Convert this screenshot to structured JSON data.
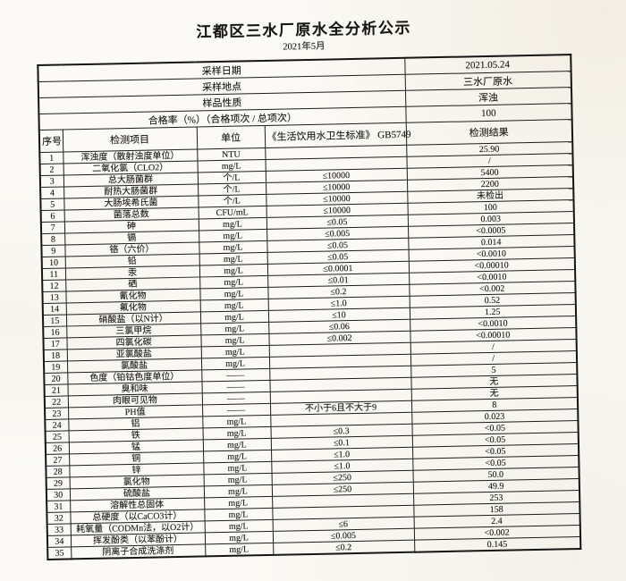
{
  "document": {
    "title": "江都区三水厂原水全分析公示",
    "subtitle": "2021年5月"
  },
  "info": [
    {
      "label": "采样日期",
      "value": "2021.05.24"
    },
    {
      "label": "采样地点",
      "value": "三水厂原水"
    },
    {
      "label": "样品性质",
      "value": "浑浊"
    },
    {
      "label": "合格率（%）（合格项次 / 总项次）",
      "value": "100"
    }
  ],
  "table": {
    "columns": [
      "序号",
      "检测项目",
      "单位",
      "《生活饮用水卫生标准》 GB5749",
      "检测结果"
    ],
    "rows": [
      [
        "1",
        "浑浊度（散射浊度单位）",
        "NTU",
        "",
        "25.90"
      ],
      [
        "2",
        "二氧化氯（CLO2）",
        "mg/L",
        "",
        "/"
      ],
      [
        "3",
        "总大肠菌群",
        "个/L",
        "≤10000",
        "5400"
      ],
      [
        "4",
        "耐热大肠菌群",
        "个/L",
        "≤10000",
        "2200"
      ],
      [
        "5",
        "大肠埃希氏菌",
        "个/L",
        "≤10000",
        "未检出"
      ],
      [
        "6",
        "菌落总数",
        "CFU/mL",
        "≤10000",
        "100"
      ],
      [
        "7",
        "砷",
        "mg/L",
        "≤0.05",
        "0.003"
      ],
      [
        "8",
        "镉",
        "mg/L",
        "≤0.005",
        "<0.0005"
      ],
      [
        "9",
        "铬（六价）",
        "mg/L",
        "≤0.05",
        "0.014"
      ],
      [
        "10",
        "铅",
        "mg/L",
        "≤0.05",
        "<0.0010"
      ],
      [
        "11",
        "汞",
        "mg/L",
        "≤0.0001",
        "<0.00010"
      ],
      [
        "12",
        "硒",
        "mg/L",
        "≤0.01",
        "<0.0010"
      ],
      [
        "13",
        "氰化物",
        "mg/L",
        "≤0.2",
        "<0.002"
      ],
      [
        "14",
        "氟化物",
        "mg/L",
        "≤1.0",
        "0.52"
      ],
      [
        "15",
        "硝酸盐（以N计）",
        "mg/L",
        "≤10",
        "1.25"
      ],
      [
        "16",
        "三氯甲烷",
        "mg/L",
        "≤0.06",
        "<0.0010"
      ],
      [
        "17",
        "四氯化碳",
        "mg/L",
        "≤0.002",
        "<0.00010"
      ],
      [
        "18",
        "亚氯酸盐",
        "mg/L",
        "",
        "/"
      ],
      [
        "19",
        "氯酸盐",
        "mg/L",
        "",
        "/"
      ],
      [
        "20",
        "色度（铂钴色度单位）",
        "——",
        "",
        "5"
      ],
      [
        "21",
        "臭和味",
        "——",
        "",
        "无"
      ],
      [
        "22",
        "肉眼可见物",
        "——",
        "",
        "无"
      ],
      [
        "23",
        "PH值",
        "——",
        "不小于6且不大于9",
        "8"
      ],
      [
        "24",
        "铝",
        "mg/L",
        "",
        "0.023"
      ],
      [
        "25",
        "铁",
        "mg/L",
        "≤0.3",
        "<0.05"
      ],
      [
        "26",
        "锰",
        "mg/L",
        "≤0.1",
        "<0.05"
      ],
      [
        "27",
        "铜",
        "mg/L",
        "≤1.0",
        "<0.05"
      ],
      [
        "28",
        "锌",
        "mg/L",
        "≤1.0",
        "<0.05"
      ],
      [
        "29",
        "氯化物",
        "mg/L",
        "≤250",
        "50.0"
      ],
      [
        "30",
        "硫酸盐",
        "mg/L",
        "≤250",
        "49.9"
      ],
      [
        "31",
        "溶解性总固体",
        "mg/L",
        "",
        "253"
      ],
      [
        "32",
        "总硬度（以CaCO3计）",
        "mg/L",
        "",
        "158"
      ],
      [
        "33",
        "耗氧量（CODMn法，以O2计）",
        "mg/L",
        "≤6",
        "2.4"
      ],
      [
        "34",
        "挥发酚类（以苯酚计）",
        "mg/L",
        "≤0.005",
        "<0.002"
      ],
      [
        "35",
        "阴离子合成洗涤剂",
        "mg/L",
        "≤0.2",
        "0.145"
      ]
    ]
  }
}
